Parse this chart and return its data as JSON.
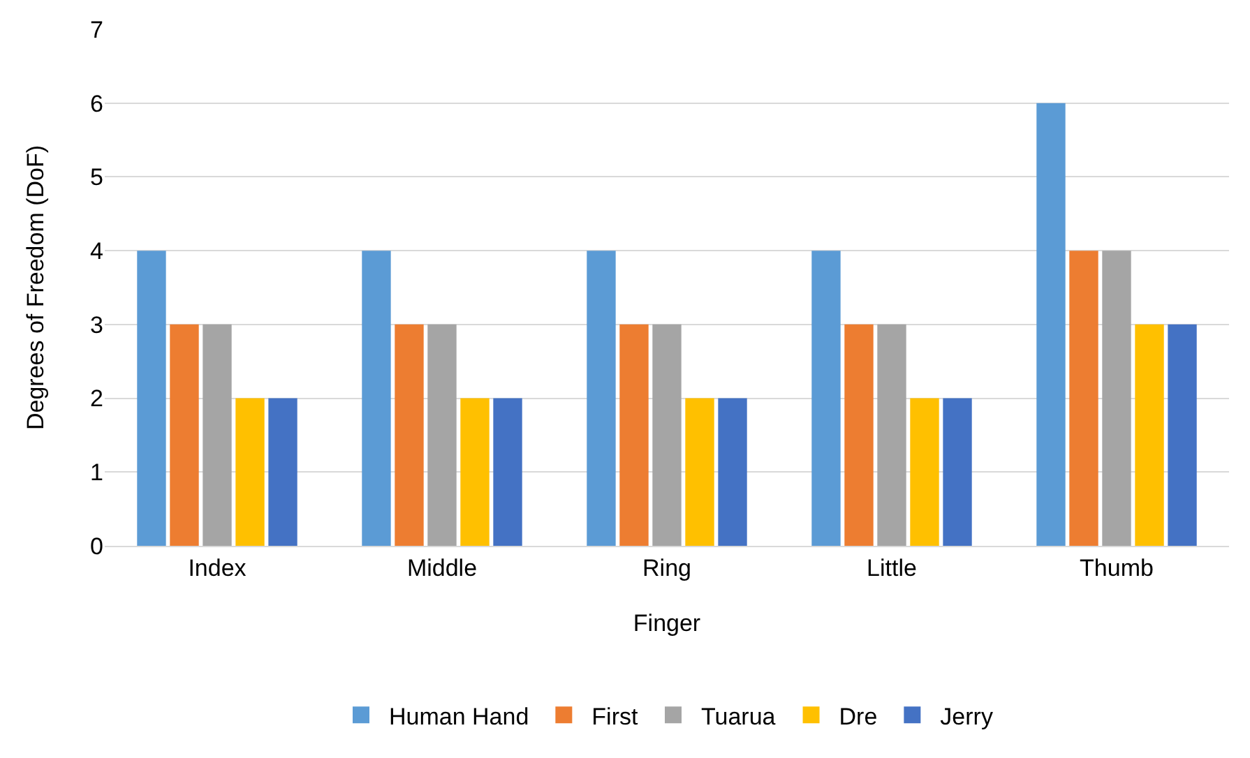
{
  "chart_data": {
    "type": "bar",
    "xlabel": "Finger",
    "ylabel": "Degrees of Freedom (DoF)",
    "categories": [
      "Index",
      "Middle",
      "Ring",
      "Little",
      "Thumb"
    ],
    "series": [
      {
        "name": "Human Hand",
        "color": "#5b9bd5",
        "values": [
          4,
          4,
          4,
          4,
          6
        ]
      },
      {
        "name": "First",
        "color": "#ed7d31",
        "values": [
          3,
          3,
          3,
          3,
          4
        ]
      },
      {
        "name": "Tuarua",
        "color": "#a5a5a5",
        "values": [
          3,
          3,
          3,
          3,
          4
        ]
      },
      {
        "name": "Dre",
        "color": "#ffc000",
        "values": [
          2,
          2,
          2,
          2,
          3
        ]
      },
      {
        "name": "Jerry",
        "color": "#4472c4",
        "values": [
          2,
          2,
          2,
          2,
          3
        ]
      }
    ],
    "ylim": [
      0,
      7
    ],
    "yticks": [
      0,
      1,
      2,
      3,
      4,
      5,
      6,
      7
    ],
    "grid": "y",
    "legend": "bottom"
  }
}
